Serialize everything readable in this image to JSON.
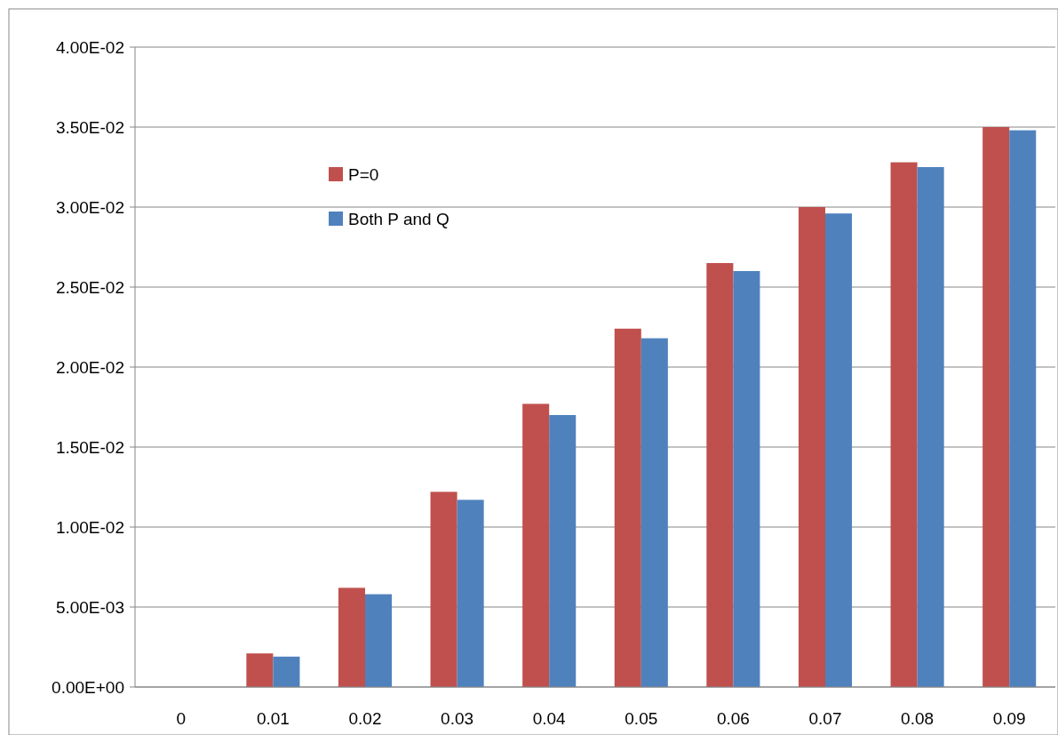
{
  "chart_data": {
    "type": "bar",
    "categories": [
      "0",
      "0.01",
      "0.02",
      "0.03",
      "0.04",
      "0.05",
      "0.06",
      "0.07",
      "0.08",
      "0.09"
    ],
    "series": [
      {
        "name": "P=0",
        "color": "#c0504d",
        "values": [
          0,
          0.0021,
          0.0062,
          0.0122,
          0.0177,
          0.0224,
          0.0265,
          0.03,
          0.0328,
          0.035
        ]
      },
      {
        "name": "Both P and Q",
        "color": "#4f81bd",
        "values": [
          0,
          0.0019,
          0.0058,
          0.0117,
          0.017,
          0.0218,
          0.026,
          0.0296,
          0.0325,
          0.0348
        ]
      }
    ],
    "ylim": [
      0,
      0.04
    ],
    "yticks": [
      {
        "value": 0,
        "label": "0.00E+00"
      },
      {
        "value": 0.005,
        "label": "5.00E-03"
      },
      {
        "value": 0.01,
        "label": "1.00E-02"
      },
      {
        "value": 0.015,
        "label": "1.50E-02"
      },
      {
        "value": 0.02,
        "label": "2.00E-02"
      },
      {
        "value": 0.025,
        "label": "2.50E-02"
      },
      {
        "value": 0.03,
        "label": "3.00E-02"
      },
      {
        "value": 0.035,
        "label": "3.50E-02"
      },
      {
        "value": 0.04,
        "label": "4.00E-02"
      }
    ],
    "grid": "y",
    "legend": "top left"
  }
}
